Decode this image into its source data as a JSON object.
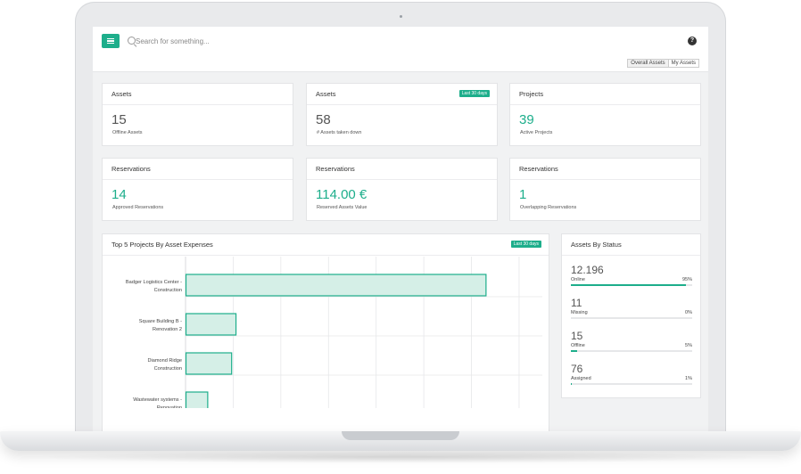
{
  "search": {
    "placeholder": "Search for something..."
  },
  "help_icon": "question-icon",
  "view_toggle": {
    "options": [
      "Overall Assets",
      "My Assets"
    ],
    "selected": "Overall Assets"
  },
  "accent_color": "#1dae8b",
  "stat_cards": [
    {
      "title": "Assets",
      "value": "15",
      "label": "Offline Assets",
      "badge": "",
      "green": false
    },
    {
      "title": "Assets",
      "value": "58",
      "label": "# Assets taken down",
      "badge": "Last 30 days",
      "green": false
    },
    {
      "title": "Projects",
      "value": "39",
      "label": "Active Projects",
      "badge": "",
      "green": true
    },
    {
      "title": "Reservations",
      "value": "14",
      "label": "Approved Reservations",
      "badge": "",
      "green": true
    },
    {
      "title": "Reservations",
      "value": "114.00 €",
      "label": "Reserved Assets Value",
      "badge": "",
      "green": true
    },
    {
      "title": "Reservations",
      "value": "1",
      "label": "Overlapping Reservations",
      "badge": "",
      "green": true
    }
  ],
  "top_projects": {
    "title": "Top 5 Projects By Asset Expenses",
    "badge": "Last 30 days"
  },
  "chart_data": {
    "type": "bar",
    "orientation": "horizontal",
    "title": "Top 5 Projects By Asset Expenses",
    "categories": [
      "Badger Logistics Center - Construction",
      "Square Building B - Renovation 2",
      "Diamond Ridge Construction",
      "Wastewater systems - Renovation"
    ],
    "category_lines": [
      [
        "Badger Logistics Center -",
        "Construction"
      ],
      [
        "Square Building B -",
        "Renovation 2"
      ],
      [
        "Diamond Ridge",
        "Construction"
      ],
      [
        "Wastewater systems -",
        "Renovation"
      ]
    ],
    "values": [
      69,
      11.5,
      10.5,
      5
    ],
    "xlim": [
      0,
      80
    ],
    "grid": true
  },
  "assets_by_status": {
    "title": "Assets By Status",
    "items": [
      {
        "value": "12.196",
        "label": "Online",
        "percent": 95
      },
      {
        "value": "11",
        "label": "Missing",
        "percent": 0
      },
      {
        "value": "15",
        "label": "Offline",
        "percent": 5
      },
      {
        "value": "76",
        "label": "Assigned",
        "percent": 1
      }
    ]
  }
}
